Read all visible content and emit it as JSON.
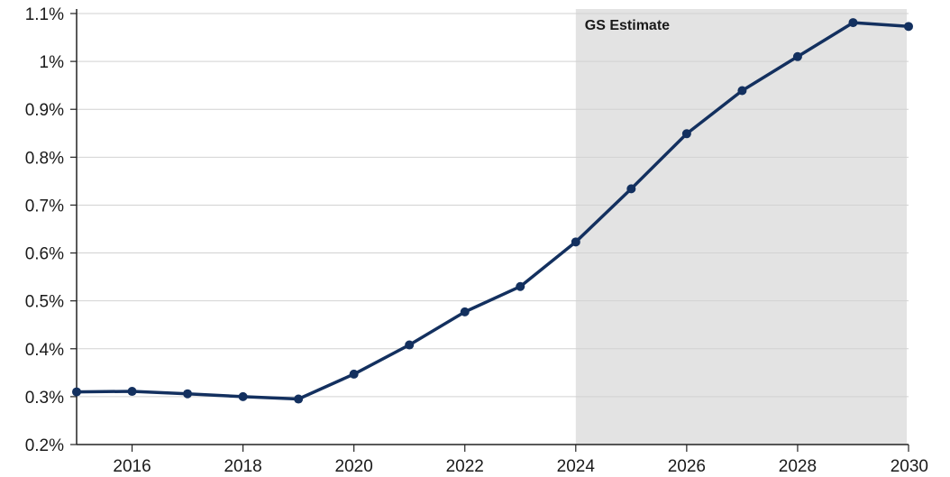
{
  "chart_data": {
    "type": "line",
    "title": "",
    "xlabel": "",
    "ylabel": "",
    "xlim": [
      2015,
      2030
    ],
    "ylim": [
      0.2,
      1.1
    ],
    "x_ticks": [
      2016,
      2018,
      2020,
      2022,
      2024,
      2026,
      2028,
      2030
    ],
    "x_tick_labels": [
      "2016",
      "2018",
      "2020",
      "2022",
      "2024",
      "2026",
      "2028",
      "2030"
    ],
    "y_ticks": [
      0.2,
      0.3,
      0.4,
      0.5,
      0.6,
      0.7,
      0.8,
      0.9,
      1.0,
      1.1
    ],
    "y_tick_labels": [
      "0.2%",
      "0.3%",
      "0.4%",
      "0.5%",
      "0.6%",
      "0.7%",
      "0.8%",
      "0.9%",
      "1%",
      "1.1%"
    ],
    "grid": "horizontal",
    "legend": "none",
    "shaded_region": {
      "x_start": 2024,
      "x_end": 2030,
      "label": "GS Estimate",
      "color": "#e3e3e3"
    },
    "line_color": "#13305f",
    "series": [
      {
        "x": [
          2015,
          2016,
          2017,
          2018,
          2019,
          2020,
          2021,
          2022,
          2023,
          2024,
          2025,
          2026,
          2027,
          2028,
          2029,
          2030
        ],
        "values": [
          0.31,
          0.311,
          0.306,
          0.3,
          0.295,
          0.347,
          0.408,
          0.477,
          0.53,
          0.623,
          0.734,
          0.849,
          0.939,
          1.01,
          1.081,
          1.073
        ]
      }
    ]
  }
}
